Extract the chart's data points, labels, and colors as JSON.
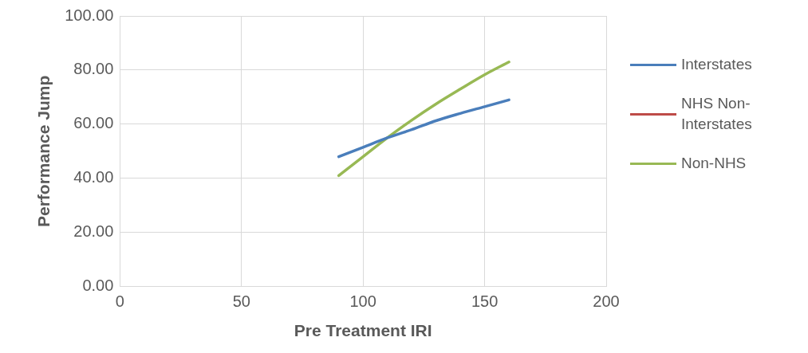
{
  "chart_data": {
    "type": "line",
    "xlabel": "Pre Treatment IRI",
    "ylabel": "Performance Jump",
    "x": [
      90,
      100,
      110,
      120,
      130,
      140,
      150,
      160
    ],
    "series": [
      {
        "name": "Interstates",
        "color": "#4a7ebb",
        "values": [
          48,
          51.5,
          55,
          58,
          61.3,
          64,
          66.5,
          69
        ]
      },
      {
        "name": "NHS Non-Interstates",
        "color": "#be4b48",
        "values": [
          null,
          null,
          null,
          null,
          null,
          null,
          null,
          null
        ]
      },
      {
        "name": "Non-NHS",
        "color": "#98b954",
        "values": [
          41,
          48,
          55,
          61.5,
          67.5,
          73,
          78.3,
          83
        ]
      }
    ],
    "xlim": [
      0,
      200
    ],
    "xticks": [
      0,
      50,
      100,
      150,
      200
    ],
    "ylim": [
      0,
      100
    ],
    "yticks": [
      {
        "value": 0,
        "label": "0.00"
      },
      {
        "value": 20,
        "label": "20.00"
      },
      {
        "value": 40,
        "label": "40.00"
      },
      {
        "value": 60,
        "label": "60.00"
      },
      {
        "value": 80,
        "label": "80.00"
      },
      {
        "value": 100,
        "label": "100.00"
      }
    ],
    "grid": true,
    "legend": "right",
    "marker": "none",
    "line_style": "solid"
  }
}
